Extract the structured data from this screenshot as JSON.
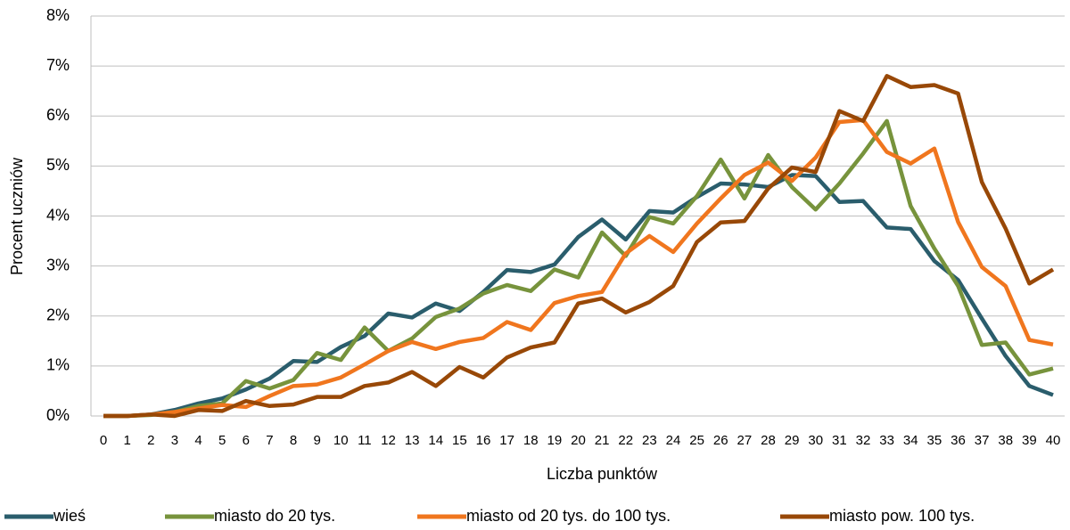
{
  "chart_data": {
    "type": "line",
    "x": [
      0,
      1,
      2,
      3,
      4,
      5,
      6,
      7,
      8,
      9,
      10,
      11,
      12,
      13,
      14,
      15,
      16,
      17,
      18,
      19,
      20,
      21,
      22,
      23,
      24,
      25,
      26,
      27,
      28,
      29,
      30,
      31,
      32,
      33,
      34,
      35,
      36,
      37,
      38,
      39,
      40
    ],
    "xlim": [
      0,
      40
    ],
    "ylim": [
      0,
      8
    ],
    "yticks": [
      {
        "value": 0,
        "label": "0%"
      },
      {
        "value": 1,
        "label": "1%"
      },
      {
        "value": 2,
        "label": "2%"
      },
      {
        "value": 3,
        "label": "3%"
      },
      {
        "value": 4,
        "label": "4%"
      },
      {
        "value": 5,
        "label": "5%"
      },
      {
        "value": 6,
        "label": "6%"
      },
      {
        "value": 7,
        "label": "7%"
      },
      {
        "value": 8,
        "label": "8%"
      }
    ],
    "x_label": "Liczba punktów",
    "y_label": "Procent uczniów",
    "grid": true,
    "legend": "bottom",
    "series": [
      {
        "name": "wieś",
        "color": "#2a5d6c",
        "values": [
          0,
          0,
          0.03,
          0.12,
          0.25,
          0.35,
          0.53,
          0.75,
          1.1,
          1.08,
          1.38,
          1.6,
          2.05,
          1.97,
          2.25,
          2.1,
          2.48,
          2.92,
          2.88,
          3.03,
          3.58,
          3.93,
          3.53,
          4.1,
          4.07,
          4.38,
          4.65,
          4.63,
          4.58,
          4.82,
          4.8,
          4.28,
          4.3,
          3.77,
          3.74,
          3.1,
          2.72,
          1.95,
          1.2,
          0.6,
          0.42
        ]
      },
      {
        "name": "miasto do 20 tys.",
        "color": "#77933c",
        "values": [
          0,
          0,
          0.02,
          0.08,
          0.2,
          0.25,
          0.7,
          0.55,
          0.72,
          1.26,
          1.12,
          1.77,
          1.3,
          1.55,
          1.98,
          2.15,
          2.45,
          2.62,
          2.5,
          2.93,
          2.77,
          3.67,
          3.2,
          3.98,
          3.85,
          4.4,
          5.13,
          4.35,
          5.22,
          4.58,
          4.13,
          4.65,
          5.25,
          5.9,
          4.2,
          3.35,
          2.6,
          1.42,
          1.47,
          0.83,
          0.95
        ]
      },
      {
        "name": "miasto od 20 tys. do 100 tys.",
        "color": "#f0761e",
        "values": [
          0,
          0,
          0.03,
          0.08,
          0.15,
          0.22,
          0.18,
          0.4,
          0.6,
          0.63,
          0.77,
          1.03,
          1.3,
          1.48,
          1.34,
          1.48,
          1.56,
          1.88,
          1.72,
          2.26,
          2.4,
          2.48,
          3.25,
          3.6,
          3.28,
          3.85,
          4.35,
          4.82,
          5.07,
          4.7,
          5.17,
          5.88,
          5.92,
          5.28,
          5.05,
          5.35,
          3.88,
          2.98,
          2.6,
          1.52,
          1.43
        ]
      },
      {
        "name": "miasto pow. 100 tys.",
        "color": "#984807",
        "values": [
          0,
          0,
          0.03,
          0,
          0.12,
          0.1,
          0.3,
          0.2,
          0.23,
          0.38,
          0.38,
          0.6,
          0.67,
          0.88,
          0.6,
          0.98,
          0.77,
          1.17,
          1.37,
          1.47,
          2.25,
          2.35,
          2.07,
          2.28,
          2.6,
          3.48,
          3.87,
          3.9,
          4.55,
          4.97,
          4.88,
          6.1,
          5.9,
          6.8,
          6.58,
          6.62,
          6.45,
          4.68,
          3.75,
          2.65,
          2.93
        ]
      }
    ]
  }
}
